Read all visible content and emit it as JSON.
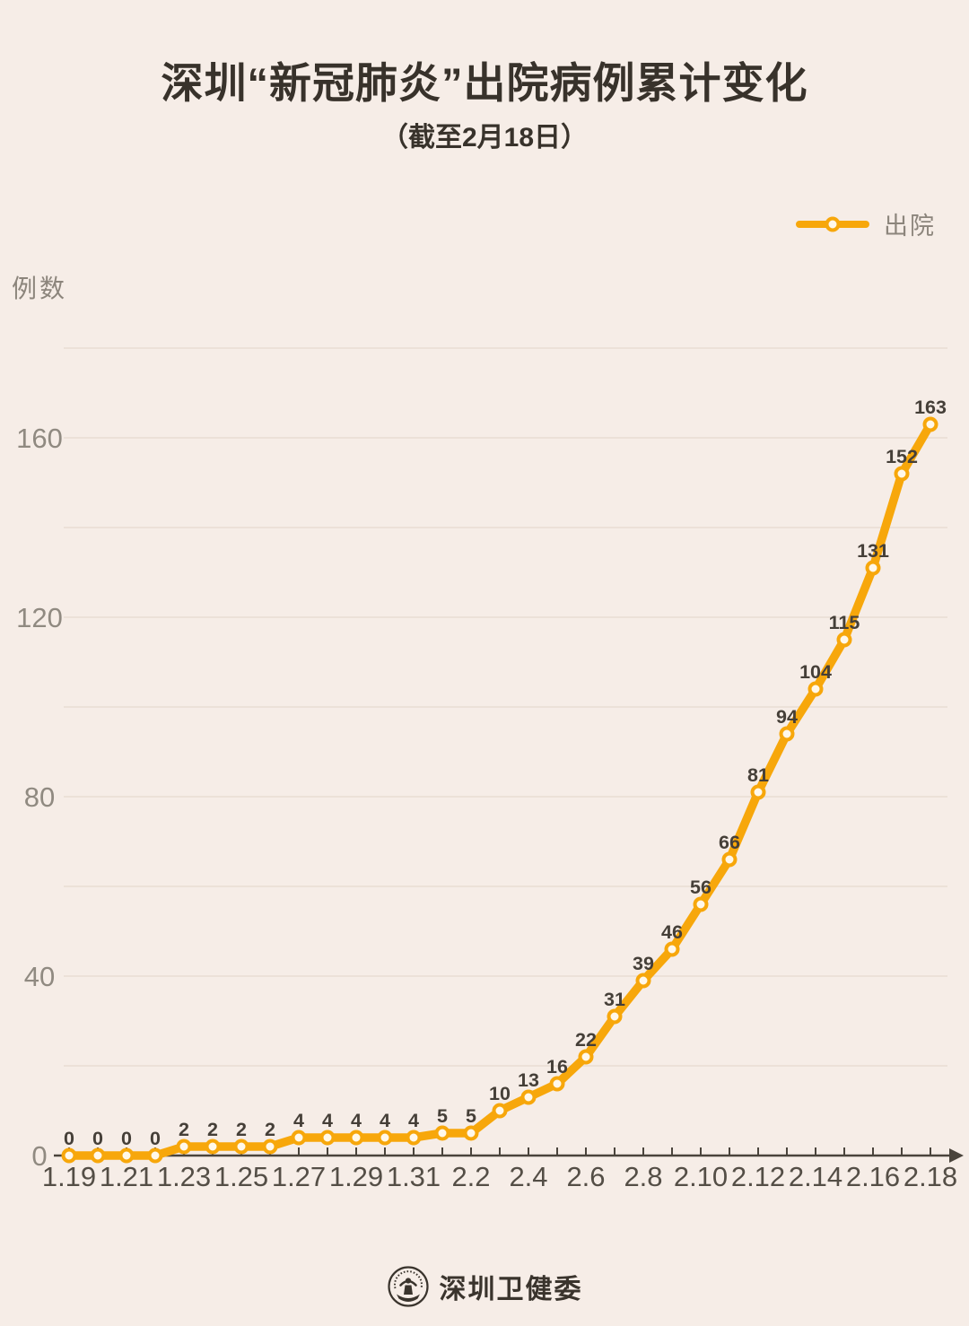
{
  "header": {
    "title": "深圳“新冠肺炎”出院病例累计变化",
    "subtitle": "（截至2月18日）"
  },
  "legend": {
    "label": "出院"
  },
  "y_axis_title": "例数",
  "footer": {
    "org_name": "深圳卫健委",
    "logo": "shenzhen-health-commission-seal"
  },
  "colors": {
    "background": "#F6EDE7",
    "line": "#F7A70B",
    "marker_fill": "#FFF8EA",
    "grid": "#E9DDD4",
    "axis": "#4A443C",
    "title_text": "#38322B",
    "y_label_text": "#908A81",
    "x_label_text": "#544E46",
    "data_label_text": "#453F38",
    "legend_text": "#8C857C",
    "footer_text": "#3A342D"
  },
  "chart_data": {
    "type": "line",
    "title": "深圳“新冠肺炎”出院病例累计变化（截至2月18日）",
    "xlabel": "",
    "ylabel": "例数",
    "grid": true,
    "legend_position": "top-right",
    "ylim": [
      0,
      180
    ],
    "gridline_step": 20,
    "y_tick_labels": [
      0,
      40,
      80,
      120,
      160
    ],
    "x": [
      "1.19",
      "1.20",
      "1.21",
      "1.22",
      "1.23",
      "1.24",
      "1.25",
      "1.26",
      "1.27",
      "1.28",
      "1.29",
      "1.30",
      "1.31",
      "2.1",
      "2.2",
      "2.3",
      "2.4",
      "2.5",
      "2.6",
      "2.7",
      "2.8",
      "2.9",
      "2.10",
      "2.11",
      "2.12",
      "2.13",
      "2.14",
      "2.15",
      "2.16",
      "2.17",
      "2.18"
    ],
    "x_labeled_every": 2,
    "series": [
      {
        "name": "出院",
        "values": [
          0,
          0,
          0,
          0,
          2,
          2,
          2,
          2,
          4,
          4,
          4,
          4,
          4,
          5,
          5,
          10,
          13,
          16,
          22,
          31,
          39,
          46,
          56,
          66,
          81,
          94,
          104,
          115,
          131,
          152,
          163
        ]
      }
    ]
  }
}
